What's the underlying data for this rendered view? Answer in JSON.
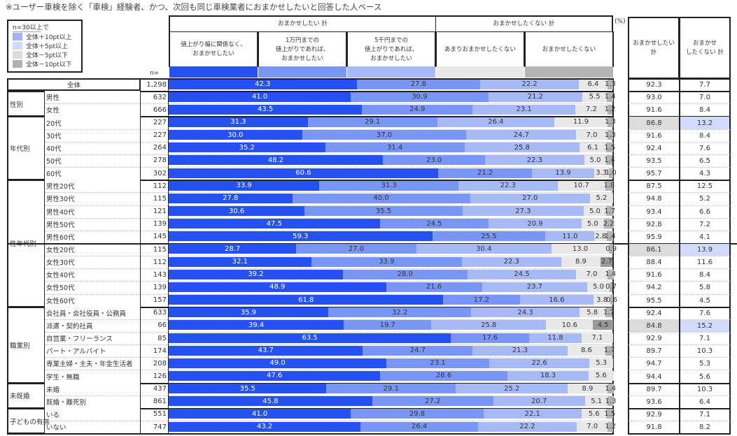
{
  "title": "※ユーザー車検を除く「車検」経験者、かつ、次回も同じ車検業者におまかせしたいと回答した人ベース",
  "legend": {
    "title": "n=30以上で",
    "items": [
      {
        "label": "全体＋10pt以上",
        "color": "#a3b3f5"
      },
      {
        "label": "全体＋5pt以上",
        "color": "#d2dbfb"
      },
      {
        "label": "全体－5pt以下",
        "color": "#dcdcdc"
      },
      {
        "label": "全体－10pt以下",
        "color": "#b0b0b0"
      }
    ]
  },
  "n_label": "n=",
  "percent_label": "(%)",
  "headers": {
    "group_yes": "おまかせしたい 計",
    "group_no": "おまかせしたくない 計",
    "total_yes": "おまかせしたい\n計",
    "total_no": "おまかせ\nしたくない 計"
  },
  "chart_data": {
    "type": "bar",
    "stacked": true,
    "orientation": "horizontal",
    "unit": "%",
    "xlim": [
      0,
      100
    ],
    "series": [
      {
        "name": "値上がり幅に関係なく、\nおまかせしたい",
        "color": "#2451f0"
      },
      {
        "name": "1万円までの\n値上がりであれば、\nおまかせしたい",
        "color": "#7a96f4"
      },
      {
        "name": "5千円までの\n値上がりであれば、\nおまかせしたい",
        "color": "#a8b9f8"
      },
      {
        "name": "あまりおまかせしたくない",
        "color": "#e8e8e8"
      },
      {
        "name": "おまかせしたくない",
        "color": "#b4b4b4"
      }
    ],
    "highlight_color": "#999999",
    "groups": [
      {
        "name": "",
        "rows": [
          {
            "label": "全体",
            "n": "1,298",
            "v": [
              42.3,
              27.8,
              22.2,
              6.4,
              1.3
            ],
            "yes": "92.3",
            "no": "7.7"
          }
        ]
      },
      {
        "name": "性別",
        "rows": [
          {
            "label": "男性",
            "n": "632",
            "v": [
              41.0,
              30.9,
              21.2,
              5.5,
              1.4
            ],
            "yes": "93.0",
            "no": "7.0"
          },
          {
            "label": "女性",
            "n": "666",
            "v": [
              43.5,
              24.9,
              23.1,
              7.2,
              1.2
            ],
            "yes": "91.6",
            "no": "8.4"
          }
        ]
      },
      {
        "name": "年代別",
        "rows": [
          {
            "label": "20代",
            "n": "227",
            "v": [
              31.3,
              29.1,
              26.4,
              11.9,
              1.3
            ],
            "yes": "86.8",
            "no": "13.2",
            "yes_hl": "minus5",
            "no_hl": "plus5"
          },
          {
            "label": "30代",
            "n": "227",
            "v": [
              30.0,
              37.0,
              24.7,
              7.0,
              1.3
            ],
            "yes": "91.6",
            "no": "8.4"
          },
          {
            "label": "40代",
            "n": "264",
            "v": [
              35.2,
              31.4,
              25.8,
              6.1,
              1.5
            ],
            "yes": "92.4",
            "no": "7.6"
          },
          {
            "label": "50代",
            "n": "278",
            "v": [
              48.2,
              23.0,
              22.3,
              5.0,
              1.4
            ],
            "yes": "93.5",
            "no": "6.5"
          },
          {
            "label": "60代",
            "n": "302",
            "v": [
              60.6,
              21.2,
              13.9,
              3.3,
              1.0
            ],
            "yes": "95.7",
            "no": "4.3"
          }
        ]
      },
      {
        "name": "性年代別",
        "rows": [
          {
            "label": "男性20代",
            "n": "112",
            "v": [
              33.9,
              31.3,
              22.3,
              10.7,
              1.8
            ],
            "yes": "87.5",
            "no": "12.5"
          },
          {
            "label": "男性30代",
            "n": "115",
            "v": [
              27.8,
              40.0,
              27.0,
              5.2,
              0
            ],
            "yes": "94.8",
            "no": "5.2"
          },
          {
            "label": "男性40代",
            "n": "121",
            "v": [
              30.6,
              35.5,
              27.3,
              5.0,
              1.7
            ],
            "yes": "93.4",
            "no": "6.6"
          },
          {
            "label": "男性50代",
            "n": "139",
            "v": [
              47.5,
              24.5,
              20.9,
              5.0,
              2.2
            ],
            "yes": "92.8",
            "no": "7.2"
          },
          {
            "label": "男性60代",
            "n": "145",
            "v": [
              59.3,
              25.5,
              11.0,
              2.8,
              1.4
            ],
            "yes": "95.9",
            "no": "4.1"
          },
          {
            "label": "女性20代",
            "n": "115",
            "v": [
              28.7,
              27.0,
              30.4,
              13.0,
              0.9
            ],
            "yes": "86.1",
            "no": "13.9",
            "yes_hl": "minus5",
            "no_hl": "plus5",
            "sep": true
          },
          {
            "label": "女性30代",
            "n": "112",
            "v": [
              32.1,
              33.9,
              22.3,
              8.9,
              2.7
            ],
            "yes": "88.4",
            "no": "11.6",
            "seg_hl": 4
          },
          {
            "label": "女性40代",
            "n": "143",
            "v": [
              39.2,
              28.0,
              24.5,
              7.0,
              1.4
            ],
            "yes": "91.6",
            "no": "8.4"
          },
          {
            "label": "女性50代",
            "n": "139",
            "v": [
              48.9,
              21.6,
              23.7,
              5.0,
              0.7
            ],
            "yes": "94.2",
            "no": "5.8"
          },
          {
            "label": "女性60代",
            "n": "157",
            "v": [
              61.8,
              17.2,
              16.6,
              3.8,
              0.6
            ],
            "yes": "95.5",
            "no": "4.5"
          }
        ]
      },
      {
        "name": "職業別",
        "rows": [
          {
            "label": "会社員・会社役員・公務員",
            "n": "633",
            "v": [
              35.9,
              32.2,
              24.3,
              5.8,
              1.7
            ],
            "yes": "92.4",
            "no": "7.6"
          },
          {
            "label": "派遣・契約社員",
            "n": "66",
            "v": [
              39.4,
              19.7,
              25.8,
              10.6,
              4.5
            ],
            "yes": "84.8",
            "no": "15.2",
            "yes_hl": "minus5",
            "no_hl": "plus5",
            "seg_hl": 4
          },
          {
            "label": "自営業・フリーランス",
            "n": "85",
            "v": [
              63.5,
              17.6,
              11.8,
              7.1,
              0
            ],
            "yes": "92.9",
            "no": "7.1"
          },
          {
            "label": "パート・アルバイト",
            "n": "174",
            "v": [
              43.7,
              24.7,
              21.3,
              8.6,
              1.7
            ],
            "yes": "89.7",
            "no": "10.3"
          },
          {
            "label": "専業主婦・主夫・年金生活者",
            "n": "208",
            "v": [
              49.0,
              23.1,
              22.6,
              5.3,
              0
            ],
            "yes": "94.7",
            "no": "5.3"
          },
          {
            "label": "学生・無職",
            "n": "126",
            "v": [
              47.6,
              28.6,
              18.3,
              5.6,
              0
            ],
            "yes": "94.4",
            "no": "5.6"
          }
        ]
      },
      {
        "name": "未既婚",
        "rows": [
          {
            "label": "未婚",
            "n": "437",
            "v": [
              35.5,
              29.1,
              25.2,
              8.9,
              1.4
            ],
            "yes": "89.7",
            "no": "10.3"
          },
          {
            "label": "既婚・離死別",
            "n": "861",
            "v": [
              45.8,
              27.2,
              20.7,
              5.1,
              1.3
            ],
            "yes": "93.6",
            "no": "6.4"
          }
        ]
      },
      {
        "name": "子どもの有無",
        "rows": [
          {
            "label": "いる",
            "n": "551",
            "v": [
              41.0,
              29.8,
              22.1,
              5.6,
              1.5
            ],
            "yes": "92.9",
            "no": "7.1"
          },
          {
            "label": "いない",
            "n": "747",
            "v": [
              43.2,
              26.4,
              22.2,
              7.0,
              1.2
            ],
            "yes": "91.8",
            "no": "8.2"
          }
        ]
      }
    ]
  }
}
